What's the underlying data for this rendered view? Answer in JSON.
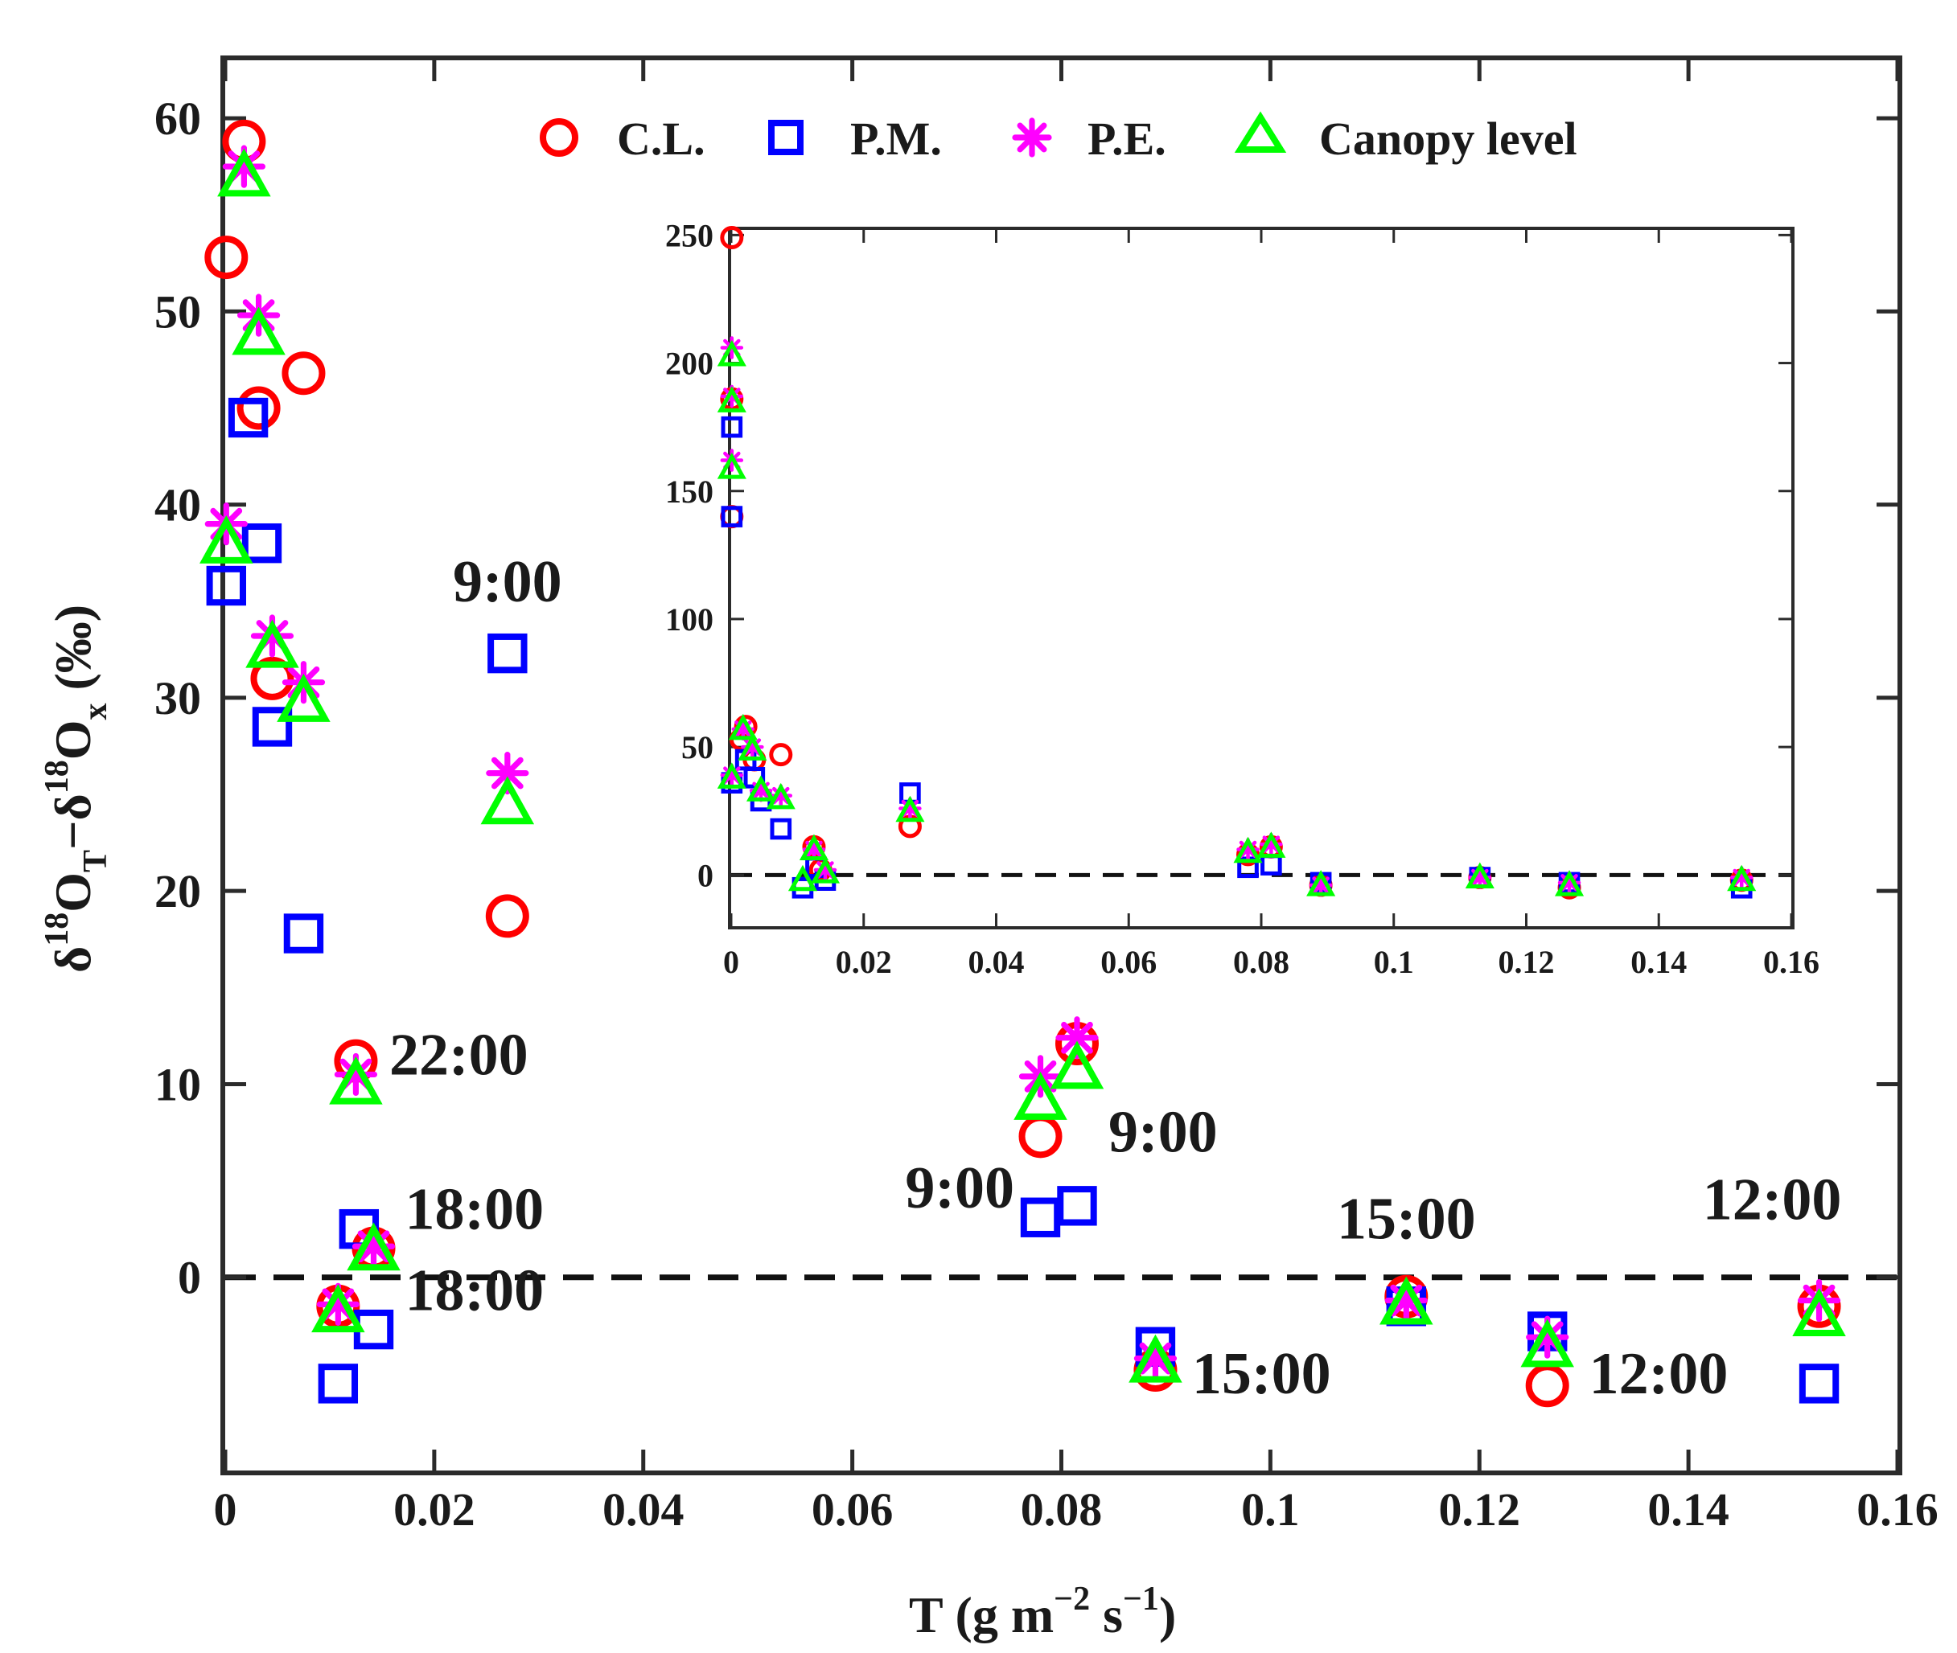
{
  "chart_data": [
    {
      "type": "scatter",
      "role": "main",
      "xlabel": {
        "base": "T (g m",
        "exp1": "−2",
        "mid": " s",
        "exp2": "−1",
        "tail": ")"
      },
      "ylabel": {
        "delta1": "δ",
        "sup1": "18",
        "o1": "O",
        "sub1": "T",
        "dash": "−δ",
        "sup2": "18",
        "o2": "O",
        "sub2": "x",
        "unit": " (‰)"
      },
      "xlim": [
        0,
        0.16
      ],
      "ylim": [
        -10,
        63
      ],
      "xticks": [
        0,
        0.02,
        0.04,
        0.06,
        0.08,
        0.1,
        0.12,
        0.14,
        0.16
      ],
      "xtick_labels": [
        "0",
        "0.02",
        "0.04",
        "0.06",
        "0.08",
        "0.1",
        "0.12",
        "0.14",
        "0.16"
      ],
      "yticks": [
        0,
        10,
        20,
        30,
        40,
        50,
        60
      ],
      "ytick_labels": [
        "0",
        "10",
        "20",
        "30",
        "40",
        "50",
        "60"
      ],
      "zero_line": 0,
      "legend": {
        "position": "top-center",
        "entries": [
          {
            "label": "C.L.",
            "marker": "circle",
            "color": "#ff0000"
          },
          {
            "label": "P.M.",
            "marker": "square",
            "color": "#0000ff"
          },
          {
            "label": "P.E.",
            "marker": "asterisk",
            "color": "#ff00ff"
          },
          {
            "label": "Canopy level",
            "marker": "triangle",
            "color": "#00ff00"
          }
        ]
      },
      "series": [
        {
          "name": "C.L.",
          "marker": "circle",
          "color": "#ff0000",
          "x": [
            0.0001,
            0.0018,
            0.0032,
            0.0045,
            0.0075,
            0.027,
            0.0125,
            0.0142,
            0.0108,
            0.078,
            0.0815,
            0.089,
            0.113,
            0.1265,
            0.1525
          ],
          "y": [
            52.8,
            58.8,
            45.0,
            31.0,
            46.8,
            18.7,
            11.2,
            1.5,
            -1.5,
            7.3,
            12.1,
            -4.8,
            -1.0,
            -5.6,
            -1.5
          ]
        },
        {
          "name": "P.M.",
          "marker": "square",
          "color": "#0000ff",
          "x": [
            0.0001,
            0.0022,
            0.0035,
            0.0045,
            0.0075,
            0.027,
            0.0128,
            0.0142,
            0.0108,
            0.078,
            0.0815,
            0.089,
            0.113,
            0.1265,
            0.1525
          ],
          "y": [
            35.8,
            44.5,
            38.0,
            28.5,
            17.8,
            32.3,
            2.5,
            -2.7,
            -5.5,
            3.1,
            3.7,
            -3.6,
            -1.5,
            -2.8,
            -5.5
          ]
        },
        {
          "name": "P.E.",
          "marker": "asterisk",
          "color": "#ff00ff",
          "x": [
            0.0001,
            0.0018,
            0.0032,
            0.0045,
            0.0075,
            0.027,
            0.0125,
            0.0142,
            0.0108,
            0.078,
            0.0815,
            0.089,
            0.113,
            0.1265,
            0.1525
          ],
          "y": [
            39.0,
            57.5,
            49.8,
            33.2,
            30.8,
            26.1,
            10.5,
            1.6,
            -1.4,
            10.4,
            12.4,
            -4.2,
            -1.2,
            -3.1,
            -1.2
          ]
        },
        {
          "name": "Canopy level",
          "marker": "triangle",
          "color": "#00ff00",
          "x": [
            0.0001,
            0.0018,
            0.0032,
            0.0045,
            0.0075,
            0.027,
            0.0125,
            0.0142,
            0.0108,
            0.078,
            0.0815,
            0.089,
            0.113,
            0.1265,
            0.1525
          ],
          "y": [
            38.0,
            57.0,
            48.8,
            32.6,
            29.8,
            24.5,
            10.0,
            1.4,
            -1.8,
            9.2,
            10.8,
            -4.4,
            -1.4,
            -3.6,
            -2.0
          ]
        }
      ],
      "annotations": [
        {
          "text": "9:00",
          "x": 0.027,
          "y": 35.0,
          "anchor": "middle"
        },
        {
          "text": "22:00",
          "x": 0.0157,
          "y": 10.5,
          "anchor": "start"
        },
        {
          "text": "18:00",
          "x": 0.0172,
          "y": 2.5,
          "anchor": "start"
        },
        {
          "text": "18:00",
          "x": 0.0172,
          "y": -1.7,
          "anchor": "start"
        },
        {
          "text": "9:00",
          "x": 0.0845,
          "y": 6.5,
          "anchor": "start"
        },
        {
          "text": "9:00",
          "x": 0.0755,
          "y": 3.6,
          "anchor": "end"
        },
        {
          "text": "15:00",
          "x": 0.113,
          "y": 2.0,
          "anchor": "middle"
        },
        {
          "text": "15:00",
          "x": 0.0925,
          "y": -6.0,
          "anchor": "start"
        },
        {
          "text": "12:00",
          "x": 0.148,
          "y": 3.0,
          "anchor": "middle"
        },
        {
          "text": "12:00",
          "x": 0.1305,
          "y": -6.0,
          "anchor": "start"
        }
      ]
    },
    {
      "type": "scatter",
      "role": "inset",
      "xlim": [
        0,
        0.16
      ],
      "ylim": [
        -20,
        252
      ],
      "xticks": [
        0,
        0.02,
        0.04,
        0.06,
        0.08,
        0.1,
        0.12,
        0.14,
        0.16
      ],
      "xtick_labels": [
        "0",
        "0.02",
        "0.04",
        "0.06",
        "0.08",
        "0.1",
        "0.12",
        "0.14",
        "0.16"
      ],
      "yticks": [
        0,
        50,
        100,
        150,
        200,
        250
      ],
      "ytick_labels": [
        "0",
        "50",
        "100",
        "150",
        "200",
        "250"
      ],
      "zero_line": 0,
      "series": [
        {
          "name": "C.L.",
          "marker": "circle",
          "color": "#ff0000",
          "x": [
            0.0001,
            0.0001,
            0.0001,
            0.0015,
            0.0022,
            0.0035,
            0.0075,
            0.027,
            0.0125,
            0.0135,
            0.078,
            0.0815,
            0.089,
            0.113,
            0.1265,
            0.1525
          ],
          "y": [
            249,
            186,
            140,
            53,
            58,
            45,
            47,
            19,
            11,
            2,
            8,
            11,
            -4,
            -1,
            -5,
            -2
          ]
        },
        {
          "name": "P.M.",
          "marker": "square",
          "color": "#0000ff",
          "x": [
            0.0001,
            0.0001,
            0.0001,
            0.0022,
            0.0035,
            0.0045,
            0.0075,
            0.027,
            0.0108,
            0.0128,
            0.0142,
            0.078,
            0.0815,
            0.089,
            0.113,
            0.1265,
            0.1525
          ],
          "y": [
            175,
            140,
            36,
            45,
            38,
            29,
            18,
            32,
            -5,
            3,
            -2,
            3,
            4,
            -3,
            -1,
            -3,
            -5
          ]
        },
        {
          "name": "P.E.",
          "marker": "asterisk",
          "color": "#ff00ff",
          "x": [
            0.0001,
            0.0001,
            0.0001,
            0.0001,
            0.0018,
            0.0032,
            0.0045,
            0.0075,
            0.027,
            0.0125,
            0.0142,
            0.078,
            0.0815,
            0.089,
            0.113,
            0.1265,
            0.1525
          ],
          "y": [
            206,
            187,
            162,
            39,
            57,
            50,
            33,
            31,
            26,
            10,
            2,
            10,
            12,
            -4,
            -1,
            -3,
            -1
          ]
        },
        {
          "name": "Canopy level",
          "marker": "triangle",
          "color": "#00ff00",
          "x": [
            0.0001,
            0.0001,
            0.0001,
            0.0001,
            0.0018,
            0.0032,
            0.0045,
            0.0075,
            0.027,
            0.0108,
            0.0125,
            0.0142,
            0.078,
            0.0815,
            0.089,
            0.113,
            0.1265,
            0.1525
          ],
          "y": [
            203,
            185,
            159,
            38,
            57,
            49,
            33,
            30,
            25,
            -2,
            10,
            1,
            9,
            11,
            -4,
            -1,
            -4,
            -2
          ]
        }
      ]
    }
  ]
}
